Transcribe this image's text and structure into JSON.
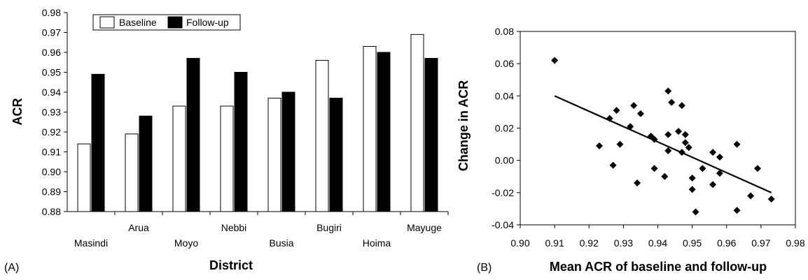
{
  "chart_data": [
    {
      "type": "bar",
      "panel_label": "(A)",
      "xlabel": "District",
      "ylabel": "ACR",
      "ylim": [
        0.88,
        0.98
      ],
      "yticks": [
        "0.88",
        "0.89",
        "0.90",
        "0.91",
        "0.92",
        "0.93",
        "0.94",
        "0.95",
        "0.96",
        "0.97",
        "0.98"
      ],
      "categories": [
        "Masindi",
        "Arua",
        "Moyo",
        "Nebbi",
        "Busia",
        "Bugiri",
        "Hoima",
        "Mayuge"
      ],
      "series": [
        {
          "name": "Baseline",
          "color": "#ffffff",
          "values": [
            0.914,
            0.919,
            0.933,
            0.933,
            0.937,
            0.956,
            0.963,
            0.969
          ]
        },
        {
          "name": "Follow-up",
          "color": "#000000",
          "values": [
            0.949,
            0.928,
            0.957,
            0.95,
            0.94,
            0.937,
            0.96,
            0.957
          ]
        }
      ],
      "legend_position": "top"
    },
    {
      "type": "scatter",
      "panel_label": "(B)",
      "xlabel": "Mean ACR of baseline and follow-up",
      "ylabel": "Change in ACR",
      "xlim": [
        0.9,
        0.98
      ],
      "ylim": [
        -0.04,
        0.08
      ],
      "xticks": [
        "0.90",
        "0.91",
        "0.92",
        "0.93",
        "0.94",
        "0.95",
        "0.96",
        "0.97",
        "0.98"
      ],
      "yticks": [
        "-0.04",
        "-0.02",
        "0.00",
        "0.02",
        "0.04",
        "0.06",
        "0.08"
      ],
      "points": [
        [
          0.91,
          0.062
        ],
        [
          0.923,
          0.009
        ],
        [
          0.926,
          0.026
        ],
        [
          0.927,
          -0.003
        ],
        [
          0.928,
          0.031
        ],
        [
          0.929,
          0.01
        ],
        [
          0.932,
          0.021
        ],
        [
          0.933,
          0.034
        ],
        [
          0.934,
          -0.014
        ],
        [
          0.935,
          0.029
        ],
        [
          0.938,
          0.015
        ],
        [
          0.939,
          0.013
        ],
        [
          0.939,
          -0.005
        ],
        [
          0.942,
          -0.01
        ],
        [
          0.943,
          0.043
        ],
        [
          0.943,
          0.016
        ],
        [
          0.943,
          0.006
        ],
        [
          0.944,
          0.036
        ],
        [
          0.946,
          0.018
        ],
        [
          0.947,
          0.005
        ],
        [
          0.947,
          0.034
        ],
        [
          0.948,
          0.011
        ],
        [
          0.948,
          0.016
        ],
        [
          0.949,
          0.008
        ],
        [
          0.95,
          -0.011
        ],
        [
          0.95,
          -0.018
        ],
        [
          0.951,
          -0.032
        ],
        [
          0.953,
          -0.005
        ],
        [
          0.956,
          -0.015
        ],
        [
          0.956,
          0.005
        ],
        [
          0.958,
          -0.008
        ],
        [
          0.958,
          0.002
        ],
        [
          0.963,
          -0.031
        ],
        [
          0.963,
          0.01
        ],
        [
          0.967,
          -0.022
        ],
        [
          0.969,
          -0.005
        ],
        [
          0.973,
          -0.024
        ]
      ],
      "trendline": {
        "from": [
          0.91,
          0.04
        ],
        "to": [
          0.973,
          -0.02
        ]
      }
    }
  ]
}
